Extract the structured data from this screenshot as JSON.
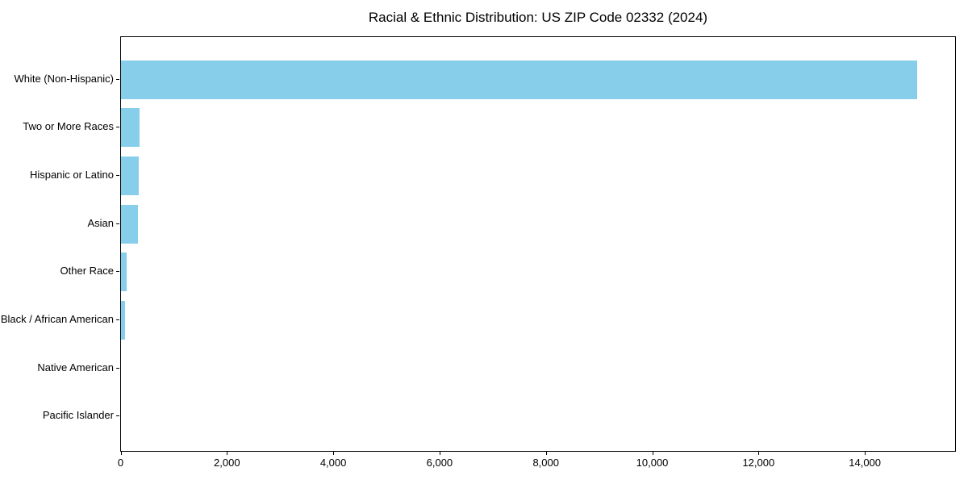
{
  "chart_data": {
    "type": "bar",
    "orientation": "horizontal",
    "title": "Racial & Ethnic Distribution: US ZIP Code 02332 (2024)",
    "categories": [
      "White (Non-Hispanic)",
      "Two or More Races",
      "Hispanic or Latino",
      "Asian",
      "Other Race",
      "Black / African American",
      "Native American",
      "Pacific Islander"
    ],
    "values": [
      14970,
      345,
      330,
      325,
      105,
      75,
      0,
      0
    ],
    "bar_color": "#87CEEB",
    "background_color": "#ffffff",
    "text_color": "#000000",
    "xlabel": "",
    "ylabel": "",
    "xlim": [
      0,
      15720
    ],
    "xticks": [
      0,
      2000,
      4000,
      6000,
      8000,
      10000,
      12000,
      14000
    ],
    "xtick_labels": [
      "0",
      "2,000",
      "4,000",
      "6,000",
      "8,000",
      "10,000",
      "12,000",
      "14,000"
    ],
    "grid": false,
    "legend": null
  }
}
